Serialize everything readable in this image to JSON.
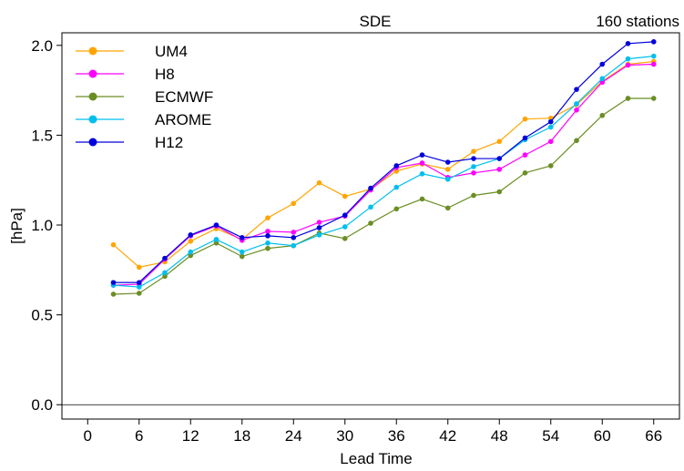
{
  "chart_data": {
    "type": "line",
    "title": "SDE",
    "subtitle": "160 stations",
    "xlabel": "Lead Time",
    "ylabel": "[hPa]",
    "xlim": [
      -3,
      69
    ],
    "ylim": [
      -0.08,
      2.07
    ],
    "xticks": [
      0,
      6,
      12,
      18,
      24,
      30,
      36,
      42,
      48,
      54,
      60,
      66
    ],
    "yticks": [
      0.0,
      0.5,
      1.0,
      1.5,
      2.0
    ],
    "ytick_labels": [
      "0.0",
      "0.5",
      "1.0",
      "1.5",
      "2.0"
    ],
    "grid": false,
    "reference_line": 0.0,
    "legend_position": "top-left",
    "x": [
      3,
      6,
      9,
      12,
      15,
      18,
      21,
      24,
      27,
      30,
      33,
      36,
      39,
      42,
      45,
      48,
      51,
      54,
      57,
      60,
      63,
      66
    ],
    "series": [
      {
        "name": "UM4",
        "color": "#FFA500",
        "values": [
          0.89,
          0.765,
          0.795,
          0.91,
          0.98,
          0.92,
          1.04,
          1.12,
          1.235,
          1.16,
          1.2,
          1.3,
          1.34,
          1.31,
          1.41,
          1.465,
          1.59,
          1.595,
          1.67,
          1.8,
          1.895,
          1.91
        ]
      },
      {
        "name": "H8",
        "color": "#FF00FF",
        "values": [
          0.665,
          0.67,
          0.81,
          0.94,
          0.995,
          0.915,
          0.965,
          0.96,
          1.015,
          1.05,
          1.195,
          1.32,
          1.345,
          1.265,
          1.29,
          1.31,
          1.39,
          1.465,
          1.64,
          1.795,
          1.89,
          1.895
        ]
      },
      {
        "name": "ECMWF",
        "color": "#6B8E23",
        "values": [
          0.615,
          0.62,
          0.715,
          0.83,
          0.9,
          0.825,
          0.87,
          0.885,
          0.955,
          0.925,
          1.01,
          1.09,
          1.145,
          1.095,
          1.165,
          1.185,
          1.29,
          1.33,
          1.47,
          1.61,
          1.705,
          1.705
        ]
      },
      {
        "name": "AROME",
        "color": "#00BFEE",
        "values": [
          0.665,
          0.655,
          0.735,
          0.85,
          0.92,
          0.85,
          0.9,
          0.885,
          0.945,
          0.99,
          1.1,
          1.21,
          1.285,
          1.255,
          1.325,
          1.37,
          1.475,
          1.545,
          1.675,
          1.815,
          1.925,
          1.94
        ]
      },
      {
        "name": "H12",
        "color": "#0000DD",
        "values": [
          0.68,
          0.68,
          0.815,
          0.945,
          1.0,
          0.93,
          0.94,
          0.93,
          0.985,
          1.055,
          1.205,
          1.33,
          1.39,
          1.35,
          1.37,
          1.37,
          1.485,
          1.575,
          1.755,
          1.895,
          2.01,
          2.02
        ]
      }
    ]
  }
}
